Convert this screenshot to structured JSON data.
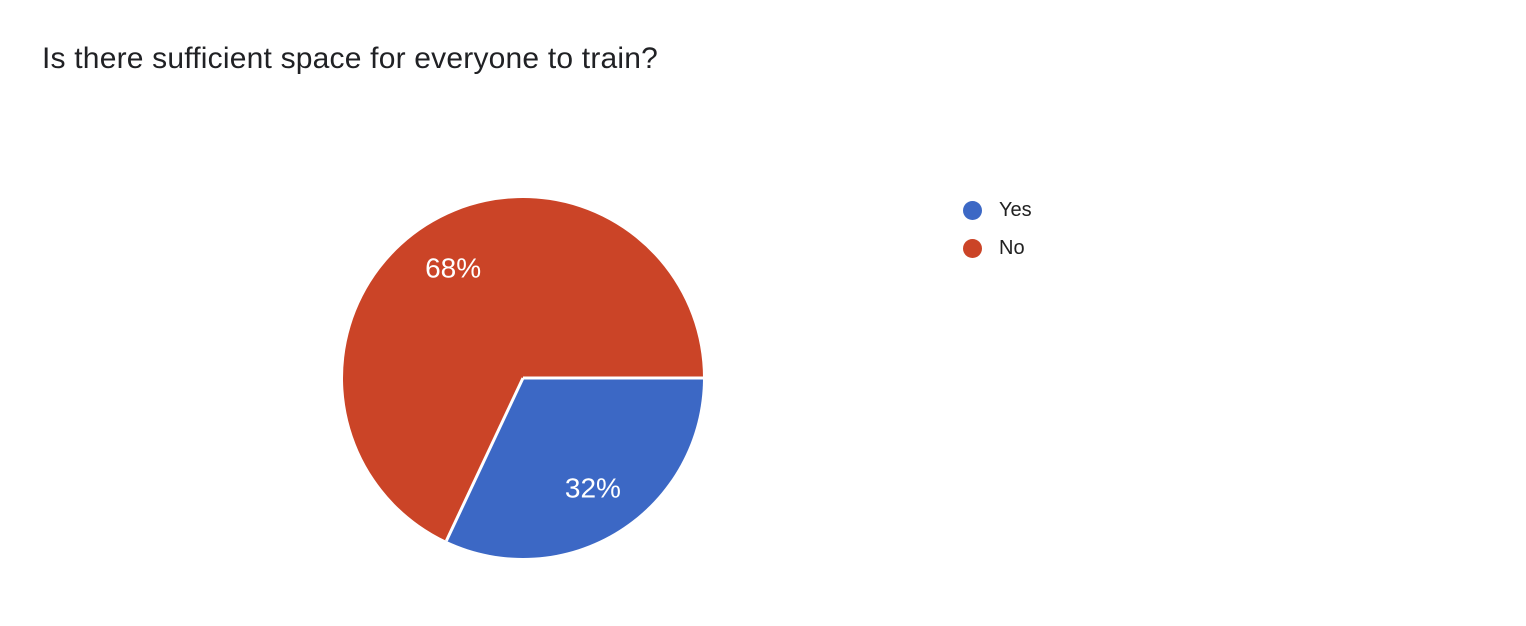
{
  "page": {
    "background_color": "#ffffff",
    "title_color": "#202124"
  },
  "chart_data": {
    "type": "pie",
    "title": "Is there sufficient space for everyone to train?",
    "slices": [
      {
        "label": "Yes",
        "value": 32,
        "percent_label": "32%",
        "color": "#3c68c5"
      },
      {
        "label": "No",
        "value": 68,
        "percent_label": "68%",
        "color": "#cb4427"
      }
    ],
    "start_angle_deg": 0,
    "direction": "clockwise",
    "legend_position": "right",
    "legend_entries": [
      "Yes",
      "No"
    ],
    "slice_label_color": "#ffffff",
    "divider_color": "#ffffff"
  }
}
